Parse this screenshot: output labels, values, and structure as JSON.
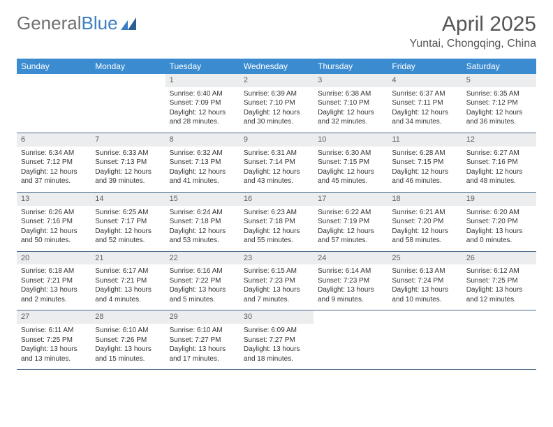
{
  "logo": {
    "text_gray": "General",
    "text_blue": "Blue"
  },
  "title": "April 2025",
  "location": "Yuntai, Chongqing, China",
  "colors": {
    "header_bg": "#3a8bd0",
    "header_fg": "#ffffff",
    "daynum_bg": "#ecedee",
    "daynum_fg": "#606060",
    "border": "#4a6a8a",
    "text": "#333333",
    "logo_gray": "#707070",
    "logo_blue": "#3a7fc4"
  },
  "weekdays": [
    "Sunday",
    "Monday",
    "Tuesday",
    "Wednesday",
    "Thursday",
    "Friday",
    "Saturday"
  ],
  "weeks": [
    [
      {
        "empty": true
      },
      {
        "empty": true
      },
      {
        "day": "1",
        "sunrise": "Sunrise: 6:40 AM",
        "sunset": "Sunset: 7:09 PM",
        "daylight1": "Daylight: 12 hours",
        "daylight2": "and 28 minutes."
      },
      {
        "day": "2",
        "sunrise": "Sunrise: 6:39 AM",
        "sunset": "Sunset: 7:10 PM",
        "daylight1": "Daylight: 12 hours",
        "daylight2": "and 30 minutes."
      },
      {
        "day": "3",
        "sunrise": "Sunrise: 6:38 AM",
        "sunset": "Sunset: 7:10 PM",
        "daylight1": "Daylight: 12 hours",
        "daylight2": "and 32 minutes."
      },
      {
        "day": "4",
        "sunrise": "Sunrise: 6:37 AM",
        "sunset": "Sunset: 7:11 PM",
        "daylight1": "Daylight: 12 hours",
        "daylight2": "and 34 minutes."
      },
      {
        "day": "5",
        "sunrise": "Sunrise: 6:35 AM",
        "sunset": "Sunset: 7:12 PM",
        "daylight1": "Daylight: 12 hours",
        "daylight2": "and 36 minutes."
      }
    ],
    [
      {
        "day": "6",
        "sunrise": "Sunrise: 6:34 AM",
        "sunset": "Sunset: 7:12 PM",
        "daylight1": "Daylight: 12 hours",
        "daylight2": "and 37 minutes."
      },
      {
        "day": "7",
        "sunrise": "Sunrise: 6:33 AM",
        "sunset": "Sunset: 7:13 PM",
        "daylight1": "Daylight: 12 hours",
        "daylight2": "and 39 minutes."
      },
      {
        "day": "8",
        "sunrise": "Sunrise: 6:32 AM",
        "sunset": "Sunset: 7:13 PM",
        "daylight1": "Daylight: 12 hours",
        "daylight2": "and 41 minutes."
      },
      {
        "day": "9",
        "sunrise": "Sunrise: 6:31 AM",
        "sunset": "Sunset: 7:14 PM",
        "daylight1": "Daylight: 12 hours",
        "daylight2": "and 43 minutes."
      },
      {
        "day": "10",
        "sunrise": "Sunrise: 6:30 AM",
        "sunset": "Sunset: 7:15 PM",
        "daylight1": "Daylight: 12 hours",
        "daylight2": "and 45 minutes."
      },
      {
        "day": "11",
        "sunrise": "Sunrise: 6:28 AM",
        "sunset": "Sunset: 7:15 PM",
        "daylight1": "Daylight: 12 hours",
        "daylight2": "and 46 minutes."
      },
      {
        "day": "12",
        "sunrise": "Sunrise: 6:27 AM",
        "sunset": "Sunset: 7:16 PM",
        "daylight1": "Daylight: 12 hours",
        "daylight2": "and 48 minutes."
      }
    ],
    [
      {
        "day": "13",
        "sunrise": "Sunrise: 6:26 AM",
        "sunset": "Sunset: 7:16 PM",
        "daylight1": "Daylight: 12 hours",
        "daylight2": "and 50 minutes."
      },
      {
        "day": "14",
        "sunrise": "Sunrise: 6:25 AM",
        "sunset": "Sunset: 7:17 PM",
        "daylight1": "Daylight: 12 hours",
        "daylight2": "and 52 minutes."
      },
      {
        "day": "15",
        "sunrise": "Sunrise: 6:24 AM",
        "sunset": "Sunset: 7:18 PM",
        "daylight1": "Daylight: 12 hours",
        "daylight2": "and 53 minutes."
      },
      {
        "day": "16",
        "sunrise": "Sunrise: 6:23 AM",
        "sunset": "Sunset: 7:18 PM",
        "daylight1": "Daylight: 12 hours",
        "daylight2": "and 55 minutes."
      },
      {
        "day": "17",
        "sunrise": "Sunrise: 6:22 AM",
        "sunset": "Sunset: 7:19 PM",
        "daylight1": "Daylight: 12 hours",
        "daylight2": "and 57 minutes."
      },
      {
        "day": "18",
        "sunrise": "Sunrise: 6:21 AM",
        "sunset": "Sunset: 7:20 PM",
        "daylight1": "Daylight: 12 hours",
        "daylight2": "and 58 minutes."
      },
      {
        "day": "19",
        "sunrise": "Sunrise: 6:20 AM",
        "sunset": "Sunset: 7:20 PM",
        "daylight1": "Daylight: 13 hours",
        "daylight2": "and 0 minutes."
      }
    ],
    [
      {
        "day": "20",
        "sunrise": "Sunrise: 6:18 AM",
        "sunset": "Sunset: 7:21 PM",
        "daylight1": "Daylight: 13 hours",
        "daylight2": "and 2 minutes."
      },
      {
        "day": "21",
        "sunrise": "Sunrise: 6:17 AM",
        "sunset": "Sunset: 7:21 PM",
        "daylight1": "Daylight: 13 hours",
        "daylight2": "and 4 minutes."
      },
      {
        "day": "22",
        "sunrise": "Sunrise: 6:16 AM",
        "sunset": "Sunset: 7:22 PM",
        "daylight1": "Daylight: 13 hours",
        "daylight2": "and 5 minutes."
      },
      {
        "day": "23",
        "sunrise": "Sunrise: 6:15 AM",
        "sunset": "Sunset: 7:23 PM",
        "daylight1": "Daylight: 13 hours",
        "daylight2": "and 7 minutes."
      },
      {
        "day": "24",
        "sunrise": "Sunrise: 6:14 AM",
        "sunset": "Sunset: 7:23 PM",
        "daylight1": "Daylight: 13 hours",
        "daylight2": "and 9 minutes."
      },
      {
        "day": "25",
        "sunrise": "Sunrise: 6:13 AM",
        "sunset": "Sunset: 7:24 PM",
        "daylight1": "Daylight: 13 hours",
        "daylight2": "and 10 minutes."
      },
      {
        "day": "26",
        "sunrise": "Sunrise: 6:12 AM",
        "sunset": "Sunset: 7:25 PM",
        "daylight1": "Daylight: 13 hours",
        "daylight2": "and 12 minutes."
      }
    ],
    [
      {
        "day": "27",
        "sunrise": "Sunrise: 6:11 AM",
        "sunset": "Sunset: 7:25 PM",
        "daylight1": "Daylight: 13 hours",
        "daylight2": "and 13 minutes."
      },
      {
        "day": "28",
        "sunrise": "Sunrise: 6:10 AM",
        "sunset": "Sunset: 7:26 PM",
        "daylight1": "Daylight: 13 hours",
        "daylight2": "and 15 minutes."
      },
      {
        "day": "29",
        "sunrise": "Sunrise: 6:10 AM",
        "sunset": "Sunset: 7:27 PM",
        "daylight1": "Daylight: 13 hours",
        "daylight2": "and 17 minutes."
      },
      {
        "day": "30",
        "sunrise": "Sunrise: 6:09 AM",
        "sunset": "Sunset: 7:27 PM",
        "daylight1": "Daylight: 13 hours",
        "daylight2": "and 18 minutes."
      },
      {
        "empty": true
      },
      {
        "empty": true
      },
      {
        "empty": true
      }
    ]
  ]
}
